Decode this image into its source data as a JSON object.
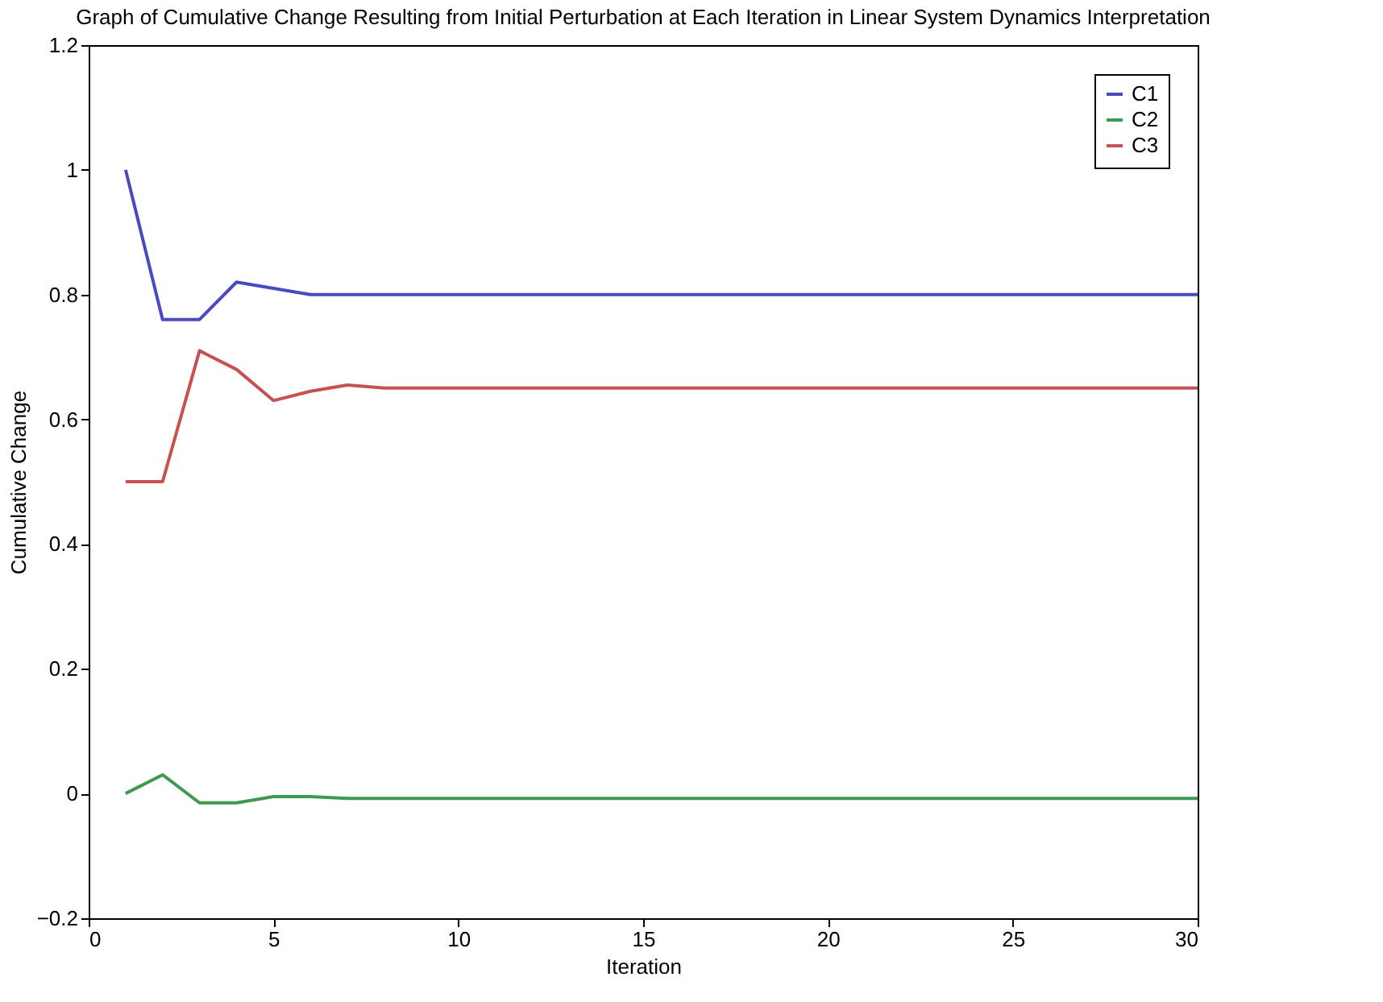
{
  "chart_data": {
    "type": "line",
    "title": "Graph of Cumulative Change Resulting from Initial Perturbation at Each Iteration in Linear System Dynamics Interpretation",
    "xlabel": "Iteration",
    "ylabel": "Cumulative Change",
    "x": [
      1,
      2,
      3,
      4,
      5,
      6,
      7,
      8,
      9,
      10,
      15,
      20,
      25,
      30
    ],
    "series": [
      {
        "name": "C1",
        "color": "#4a4ac0",
        "values": [
          1.0,
          0.76,
          0.76,
          0.82,
          0.81,
          0.8,
          0.8,
          0.8,
          0.8,
          0.8,
          0.8,
          0.8,
          0.8,
          0.8
        ]
      },
      {
        "name": "C2",
        "color": "#3d9a4f",
        "values": [
          0.0,
          0.03,
          -0.015,
          -0.015,
          -0.005,
          -0.005,
          -0.008,
          -0.008,
          -0.008,
          -0.008,
          -0.008,
          -0.008,
          -0.008,
          -0.008
        ]
      },
      {
        "name": "C3",
        "color": "#c85050",
        "values": [
          0.5,
          0.5,
          0.71,
          0.68,
          0.63,
          0.645,
          0.655,
          0.65,
          0.65,
          0.65,
          0.65,
          0.65,
          0.65,
          0.65
        ]
      }
    ],
    "xlim": [
      0,
      30
    ],
    "xticks": [
      0,
      5,
      10,
      15,
      20,
      25,
      30
    ],
    "ylim": [
      -0.2,
      1.2
    ],
    "yticks": [
      -0.2,
      0,
      0.2,
      0.4,
      0.6,
      0.8,
      1,
      1.2
    ],
    "grid": false,
    "legend": "top right",
    "marker": "none",
    "line_style": "solid"
  }
}
